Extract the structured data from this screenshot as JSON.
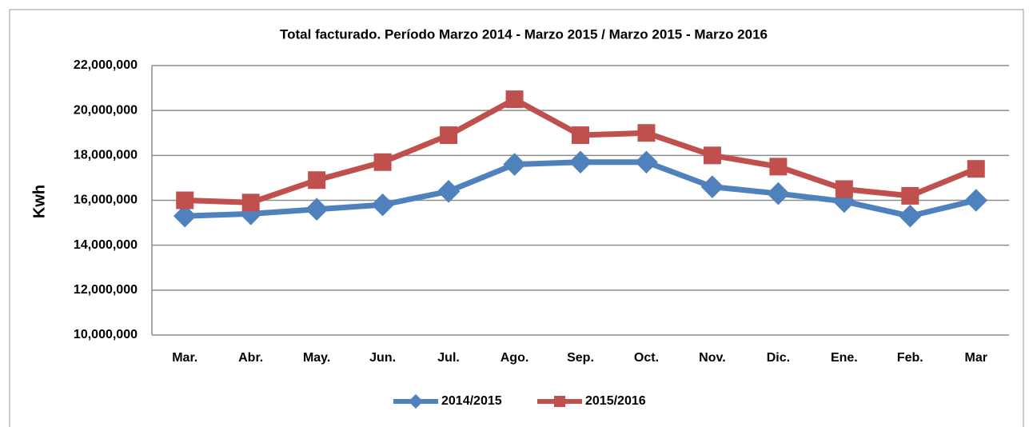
{
  "chart_data": {
    "type": "line",
    "title": "Total facturado. Período Marzo 2014 - Marzo 2015 / Marzo 2015 - Marzo 2016",
    "y_label": "Kwh",
    "categories": [
      "Mar.",
      "Abr.",
      "May.",
      "Jun.",
      "Jul.",
      "Ago.",
      "Sep.",
      "Oct.",
      "Nov.",
      "Dic.",
      "Ene.",
      "Feb.",
      "Mar"
    ],
    "series": [
      {
        "name": "2014/2015",
        "color": "#4f81bd",
        "marker": "diamond",
        "values": [
          15300000,
          15400000,
          15600000,
          15800000,
          16400000,
          17600000,
          17700000,
          17700000,
          16600000,
          16300000,
          15950000,
          15300000,
          16000000
        ]
      },
      {
        "name": "2015/2016",
        "color": "#c0504d",
        "marker": "square",
        "values": [
          16000000,
          15900000,
          16900000,
          17700000,
          18900000,
          20500000,
          18900000,
          19000000,
          18000000,
          17500000,
          16500000,
          16200000,
          17400000
        ]
      }
    ],
    "ylim": [
      10000000,
      22000000
    ],
    "yticks": [
      {
        "value": 10000000,
        "label": "10,000,000"
      },
      {
        "value": 12000000,
        "label": "12,000,000"
      },
      {
        "value": 14000000,
        "label": "14,000,000"
      },
      {
        "value": 16000000,
        "label": "16,000,000"
      },
      {
        "value": 18000000,
        "label": "18,000,000"
      },
      {
        "value": 20000000,
        "label": "20,000,000"
      },
      {
        "value": 22000000,
        "label": "22,000,000"
      }
    ],
    "grid": true,
    "legend": "bottom"
  }
}
